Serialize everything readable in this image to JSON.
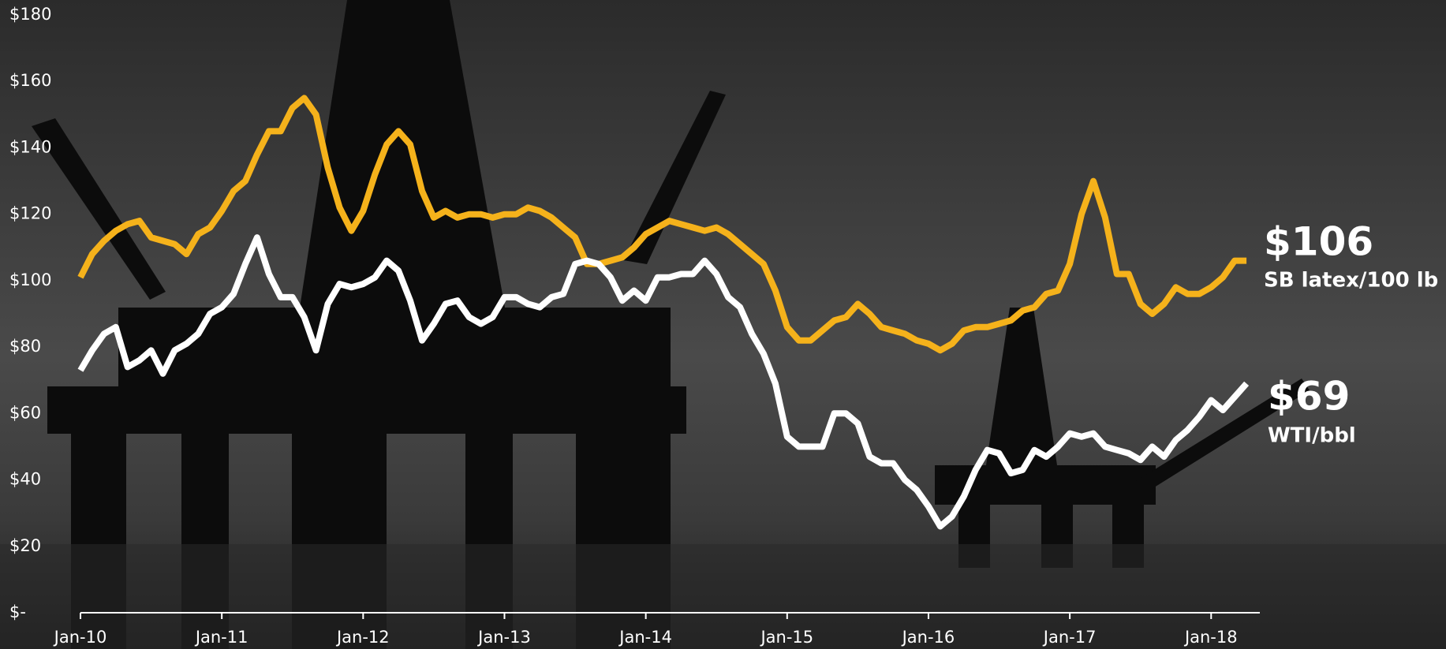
{
  "chart_data": {
    "type": "line",
    "categories": [
      "Jan-10",
      null,
      null,
      null,
      null,
      null,
      null,
      null,
      null,
      null,
      null,
      null,
      "Jan-11",
      null,
      null,
      null,
      null,
      null,
      null,
      null,
      null,
      null,
      null,
      null,
      "Jan-12",
      null,
      null,
      null,
      null,
      null,
      null,
      null,
      null,
      null,
      null,
      null,
      "Jan-13",
      null,
      null,
      null,
      null,
      null,
      null,
      null,
      null,
      null,
      null,
      null,
      "Jan-14",
      null,
      null,
      null,
      null,
      null,
      null,
      null,
      null,
      null,
      null,
      null,
      "Jan-15",
      null,
      null,
      null,
      null,
      null,
      null,
      null,
      null,
      null,
      null,
      null,
      "Jan-16",
      null,
      null,
      null,
      null,
      null,
      null,
      null,
      null,
      null,
      null,
      null,
      "Jan-17",
      null,
      null,
      null,
      null,
      null,
      null,
      null,
      null,
      null,
      null,
      null,
      "Jan-18",
      null,
      null,
      null
    ],
    "series": [
      {
        "name": "SB latex/100 lb",
        "color": "#f5b21b",
        "values": [
          101,
          108,
          112,
          115,
          117,
          118,
          113,
          112,
          111,
          108,
          114,
          116,
          121,
          127,
          130,
          138,
          145,
          145,
          152,
          155,
          150,
          134,
          122,
          115,
          121,
          132,
          141,
          145,
          141,
          127,
          119,
          121,
          119,
          120,
          120,
          119,
          120,
          120,
          122,
          121,
          119,
          116,
          113,
          105,
          105,
          106,
          107,
          110,
          114,
          116,
          118,
          117,
          116,
          115,
          116,
          114,
          111,
          108,
          105,
          97,
          86,
          82,
          82,
          85,
          88,
          89,
          93,
          90,
          86,
          85,
          84,
          82,
          81,
          79,
          81,
          85,
          86,
          86,
          87,
          88,
          91,
          92,
          96,
          97,
          105,
          120,
          130,
          119,
          102,
          102,
          93,
          90,
          93,
          98,
          96,
          96,
          98,
          101,
          106,
          106
        ]
      },
      {
        "name": "WTI/bbl",
        "color": "#ffffff",
        "values": [
          73,
          79,
          84,
          86,
          74,
          76,
          79,
          72,
          79,
          81,
          84,
          90,
          92,
          96,
          105,
          113,
          102,
          95,
          95,
          89,
          79,
          93,
          99,
          98,
          99,
          101,
          106,
          103,
          94,
          82,
          87,
          93,
          94,
          89,
          87,
          89,
          95,
          95,
          93,
          92,
          95,
          96,
          105,
          106,
          105,
          101,
          94,
          97,
          94,
          101,
          101,
          102,
          102,
          106,
          102,
          95,
          92,
          84,
          78,
          69,
          53,
          50,
          50,
          50,
          60,
          60,
          57,
          47,
          45,
          45,
          40,
          37,
          32,
          26,
          29,
          35,
          43,
          49,
          48,
          42,
          43,
          49,
          47,
          50,
          54,
          53,
          54,
          50,
          49,
          48,
          46,
          50,
          47,
          52,
          55,
          59,
          64,
          61,
          65,
          69
        ]
      }
    ],
    "annotations": [
      "$106",
      "$69"
    ],
    "ylim": [
      0,
      180
    ],
    "yticks": [
      {
        "value": 0,
        "label": "$-"
      },
      {
        "value": 20,
        "label": "$20"
      },
      {
        "value": 40,
        "label": "$40"
      },
      {
        "value": 60,
        "label": "$60"
      },
      {
        "value": 80,
        "label": "$80"
      },
      {
        "value": 100,
        "label": "$100"
      },
      {
        "value": 120,
        "label": "$120"
      },
      {
        "value": 140,
        "label": "$140"
      },
      {
        "value": 160,
        "label": "$160"
      },
      {
        "value": 180,
        "label": "$180"
      }
    ],
    "grid": false
  }
}
